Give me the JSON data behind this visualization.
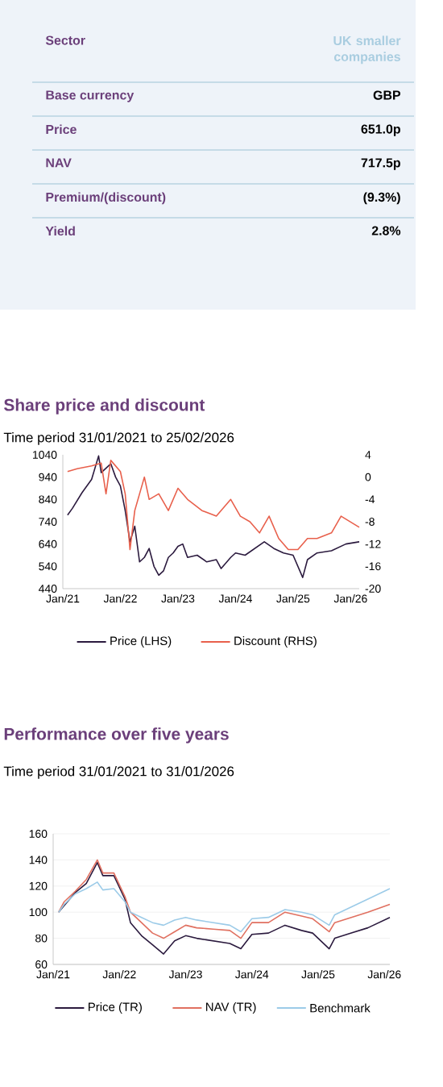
{
  "chart_data": [
    {
      "type": "other",
      "categories": [
        "Sector",
        "Base currency",
        "Price",
        "NAV",
        "Premium/(discount)",
        "Yield"
      ],
      "annotations": [
        "UK smaller companies",
        "GBP",
        "651.0p",
        "717.5p",
        "(9.3%)",
        "2.8%"
      ]
    },
    {
      "type": "line",
      "title": "Share price and discount",
      "subtitle": "Time period 31/01/2021 to 25/02/2026",
      "xlim": [
        "2021-01-01",
        "2026-02-25"
      ],
      "xticks": [
        {
          "value": "2021-01-01",
          "label": "Jan/21"
        },
        {
          "value": "2022-01-01",
          "label": "Jan/22"
        },
        {
          "value": "2023-01-01",
          "label": "Jan/23"
        },
        {
          "value": "2024-01-01",
          "label": "Jan/24"
        },
        {
          "value": "2025-01-01",
          "label": "Jan/25"
        },
        {
          "value": "2026-01-01",
          "label": "Jan/26"
        }
      ],
      "ylim": [
        440,
        1040
      ],
      "yticks": [
        440,
        540,
        640,
        740,
        840,
        940,
        1040
      ],
      "y2lim": [
        -20,
        4
      ],
      "y2ticks": [
        -20,
        -16,
        -12,
        -8,
        -4,
        0,
        4
      ],
      "legend": "bottom",
      "grid": false,
      "series": [
        {
          "name": "Price (LHS)",
          "color": "#2b1a3e",
          "x": [
            "2021-01-31",
            "2021-03",
            "2021-05",
            "2021-07",
            "2021-08-15",
            "2021-09",
            "2021-11",
            "2021-12",
            "2022-01",
            "2022-02",
            "2022-03",
            "2022-04",
            "2022-05",
            "2022-06",
            "2022-07",
            "2022-08",
            "2022-09",
            "2022-10",
            "2022-11",
            "2022-12",
            "2023-01",
            "2023-02",
            "2023-03",
            "2023-05",
            "2023-07",
            "2023-09",
            "2023-10",
            "2023-12",
            "2024-01",
            "2024-03",
            "2024-05",
            "2024-07",
            "2024-09",
            "2024-11",
            "2025-01",
            "2025-03",
            "2025-04",
            "2025-06",
            "2025-09",
            "2025-12",
            "2026-02-25"
          ],
          "values": [
            770,
            800,
            870,
            930,
            1035,
            960,
            1000,
            940,
            900,
            790,
            650,
            720,
            560,
            580,
            620,
            540,
            500,
            520,
            580,
            600,
            630,
            640,
            580,
            590,
            560,
            570,
            530,
            580,
            600,
            590,
            620,
            650,
            620,
            600,
            590,
            490,
            570,
            600,
            610,
            640,
            650
          ]
        },
        {
          "name": "Discount (RHS)",
          "color": "#e8604c",
          "axis": "y2",
          "x": [
            "2021-01-31",
            "2021-04",
            "2021-07",
            "2021-09",
            "2021-10",
            "2021-11",
            "2022-01",
            "2022-02",
            "2022-03",
            "2022-04",
            "2022-06",
            "2022-07",
            "2022-09",
            "2022-11",
            "2023-01",
            "2023-03",
            "2023-06",
            "2023-09",
            "2023-12",
            "2024-02",
            "2024-04",
            "2024-06",
            "2024-08",
            "2024-10",
            "2024-12",
            "2025-02",
            "2025-04",
            "2025-06",
            "2025-09",
            "2025-11",
            "2026-02-25"
          ],
          "values": [
            1,
            1.5,
            2,
            2.5,
            -3,
            3,
            1,
            -3,
            -13,
            -6,
            0,
            -4,
            -3,
            -6,
            -2,
            -4,
            -6,
            -7,
            -4,
            -7,
            -8,
            -10,
            -7,
            -11,
            -13,
            -13,
            -11,
            -11,
            -10,
            -7,
            -9
          ]
        }
      ]
    },
    {
      "type": "line",
      "title": "Performance over five years",
      "subtitle": "Time period 31/01/2021 to 31/01/2026",
      "xlim": [
        "2021-01-01",
        "2026-01-31"
      ],
      "xticks": [
        {
          "value": "2021-01-01",
          "label": "Jan/21"
        },
        {
          "value": "2022-01-01",
          "label": "Jan/22"
        },
        {
          "value": "2023-01-01",
          "label": "Jan/23"
        },
        {
          "value": "2024-01-01",
          "label": "Jan/24"
        },
        {
          "value": "2025-01-01",
          "label": "Jan/25"
        },
        {
          "value": "2026-01-01",
          "label": "Jan/26"
        }
      ],
      "ylim": [
        60,
        160
      ],
      "yticks": [
        60,
        80,
        100,
        120,
        140,
        160
      ],
      "legend": "bottom",
      "grid": "y",
      "x": [
        "2021-01-31",
        "2021-03",
        "2021-05",
        "2021-07",
        "2021-09",
        "2021-10",
        "2021-12",
        "2022-02",
        "2022-03",
        "2022-05",
        "2022-07",
        "2022-09",
        "2022-11",
        "2023-01",
        "2023-03",
        "2023-06",
        "2023-09",
        "2023-11",
        "2024-01",
        "2024-04",
        "2024-07",
        "2024-10",
        "2024-12",
        "2025-03",
        "2025-04",
        "2025-07",
        "2025-10",
        "2026-01-31"
      ],
      "series": [
        {
          "name": "Price (TR)",
          "color": "#2b1a3e",
          "values": [
            100,
            105,
            115,
            122,
            138,
            128,
            128,
            110,
            92,
            82,
            75,
            68,
            78,
            82,
            80,
            78,
            76,
            72,
            83,
            84,
            90,
            86,
            84,
            72,
            80,
            84,
            88,
            96
          ]
        },
        {
          "name": "NAV (TR)",
          "color": "#e07060",
          "values": [
            100,
            108,
            116,
            125,
            140,
            130,
            130,
            112,
            100,
            92,
            84,
            80,
            85,
            90,
            88,
            87,
            86,
            80,
            92,
            92,
            100,
            97,
            95,
            85,
            92,
            96,
            100,
            106
          ]
        },
        {
          "name": "Benchmark",
          "color": "#9ccbe8",
          "values": [
            100,
            106,
            114,
            118,
            123,
            117,
            118,
            108,
            100,
            96,
            92,
            90,
            94,
            96,
            94,
            92,
            90,
            85,
            95,
            96,
            102,
            100,
            98,
            90,
            98,
            104,
            110,
            118
          ]
        }
      ]
    }
  ]
}
